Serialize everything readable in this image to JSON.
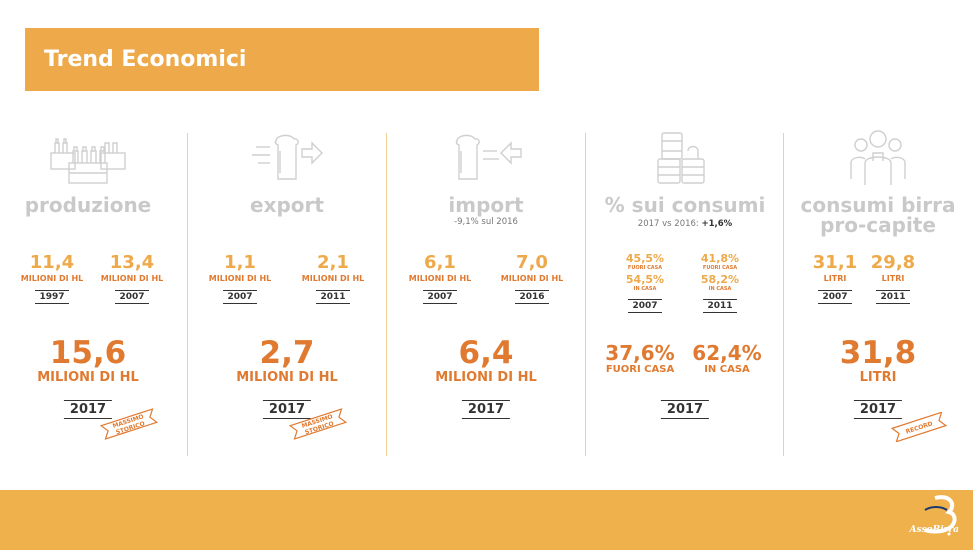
{
  "title": "Trend Economici",
  "columns": [
    {
      "heading": "produzione",
      "icon": "beer-crates-icon",
      "stats": [
        {
          "value": "11,4",
          "unit": "MILIONI DI HL",
          "year": "1997"
        },
        {
          "value": "13,4",
          "unit": "MILIONI DI HL",
          "year": "2007"
        }
      ],
      "big": {
        "value": "15,6",
        "unit": "MILIONI DI HL",
        "year": "2017"
      },
      "ribbon": [
        "MASSIMO",
        "STORICO"
      ]
    },
    {
      "heading": "export",
      "icon": "beer-glass-export-icon",
      "stats": [
        {
          "value": "1,1",
          "unit": "MILIONI DI HL",
          "year": "2007"
        },
        {
          "value": "2,1",
          "unit": "MILIONI DI HL",
          "year": "2011"
        }
      ],
      "big": {
        "value": "2,7",
        "unit": "MILIONI DI HL",
        "year": "2017"
      },
      "ribbon": [
        "MASSIMO",
        "STORICO"
      ]
    },
    {
      "heading": "import",
      "icon": "beer-glass-import-icon",
      "subtitle": "-9,1% sul 2016",
      "stats": [
        {
          "value": "6,1",
          "unit": "MILIONI DI HL",
          "year": "2007"
        },
        {
          "value": "7,0",
          "unit": "MILIONI DI HL",
          "year": "2016"
        }
      ],
      "big": {
        "value": "6,4",
        "unit": "MILIONI DI HL",
        "year": "2017"
      }
    },
    {
      "heading": "% sui consumi",
      "icon": "kegs-icon",
      "subtitle_prefix": "2017 vs 2016:",
      "subtitle_bold": "+1,6%",
      "pairs": [
        {
          "out_value": "45,5%",
          "out_unit": "FUORI CASA",
          "in_value": "54,5%",
          "in_unit": "IN CASA",
          "year": "2007"
        },
        {
          "out_value": "41,8%",
          "out_unit": "FUORI CASA",
          "in_value": "58,2%",
          "in_unit": "IN CASA",
          "year": "2011"
        }
      ],
      "big_pairs": [
        {
          "value": "37,6%",
          "unit": "FUORI CASA"
        },
        {
          "value": "62,4%",
          "unit": "IN CASA"
        }
      ],
      "big_year": "2017"
    },
    {
      "heading_line1": "consumi birra",
      "heading_line2": "pro-capite",
      "icon": "people-icon",
      "stats": [
        {
          "value": "31,1",
          "unit": "LITRI",
          "year": "2007"
        },
        {
          "value": "29,8",
          "unit": "LITRI",
          "year": "2011"
        }
      ],
      "big": {
        "value": "31,8",
        "unit": "LITRI",
        "year": "2017"
      },
      "ribbon": [
        "RECORD"
      ]
    }
  ],
  "logo": {
    "name": "AssoBirra"
  },
  "colors": {
    "accent": "#eda94a",
    "orange": "#e07a30",
    "band": "#eeb14c",
    "heading_gray": "#c9c9c9"
  }
}
